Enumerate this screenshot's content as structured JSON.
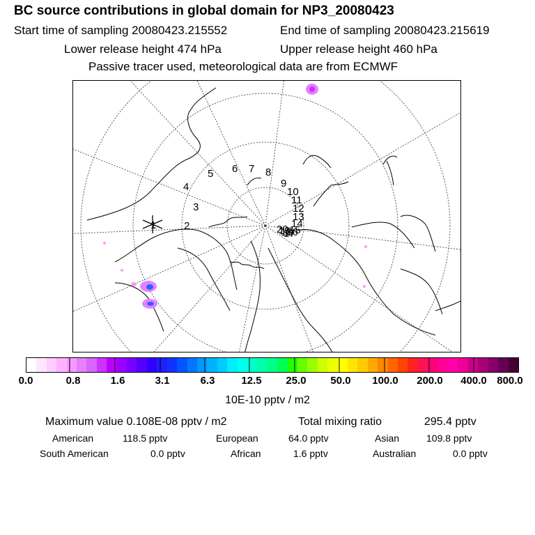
{
  "title": "BC  source contributions in global domain for NP3_20080423",
  "header": {
    "start_label": "Start time of sampling 20080423.215552",
    "end_label": "End time of sampling 20080423.215619",
    "lower_label": "Lower release height  474 hPa",
    "upper_label": "Upper release height  460 hPa",
    "tracer_note": "Passive tracer used, meteorological data are from ECMWF"
  },
  "map": {
    "trajectory_labels": [
      "1",
      "2",
      "3",
      "4",
      "5",
      "6",
      "7",
      "8",
      "9",
      "10",
      "11",
      "12",
      "13",
      "14",
      "15",
      "16",
      "17",
      "18",
      "19",
      "20"
    ],
    "release_marker": "X",
    "colors": {
      "coast": "#000000",
      "grid": "#333333",
      "plume_light": "#ffa0ff",
      "plume_mid": "#e040ff",
      "plume_dark": "#3060ff"
    }
  },
  "colorbar": {
    "colors": [
      "#ffffff",
      "#ffe6ff",
      "#ffccff",
      "#ffb3ff",
      "#f999ff",
      "#e680ff",
      "#d966ff",
      "#cc33ff",
      "#bb00ff",
      "#9900ff",
      "#7700ff",
      "#5500ff",
      "#3300ff",
      "#2020ff",
      "#1133ff",
      "#0055ff",
      "#0077ff",
      "#0099ff",
      "#00b3ff",
      "#00ccff",
      "#00eeff",
      "#00ffee",
      "#00ffcc",
      "#00ffaa",
      "#00ff88",
      "#00ff55",
      "#22ff00",
      "#66ff00",
      "#99ff00",
      "#ccff00",
      "#eeff00",
      "#ffff00",
      "#ffe600",
      "#ffcc00",
      "#ffaa00",
      "#ff8800",
      "#ff6600",
      "#ff4400",
      "#ff2222",
      "#ff1155",
      "#ff0077",
      "#ff0099",
      "#ff00aa",
      "#ee0099",
      "#cc0088",
      "#aa0077",
      "#880066",
      "#660055",
      "#440033"
    ],
    "tick_labels": [
      "0.0",
      "0.8",
      "1.6",
      "3.1",
      "6.3",
      "12.5",
      "25.0",
      "50.0",
      "100.0",
      "200.0",
      "400.0",
      "800.0"
    ],
    "unit": "10E-10 pptv / m2"
  },
  "stats": {
    "max_value": "Maximum value  0.108E-08 pptv / m2",
    "total_mixing": "Total mixing ratio",
    "total_value": "295.4 pptv",
    "regions": [
      {
        "name": "American",
        "value": "118.5 pptv"
      },
      {
        "name": "European",
        "value": "64.0 pptv"
      },
      {
        "name": "Asian",
        "value": "109.8 pptv"
      },
      {
        "name": "South American",
        "value": "0.0 pptv"
      },
      {
        "name": "African",
        "value": "1.6 pptv"
      },
      {
        "name": "Australian",
        "value": "0.0 pptv"
      }
    ]
  }
}
